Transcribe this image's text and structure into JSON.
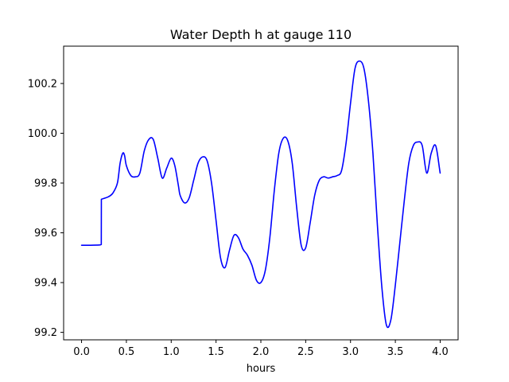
{
  "chart_data": {
    "type": "line",
    "title": "Water Depth h at gauge 110",
    "xlabel": "hours",
    "ylabel": "",
    "xlim": [
      -0.2,
      4.2
    ],
    "ylim": [
      99.17,
      100.35
    ],
    "x_ticks": [
      0.0,
      0.5,
      1.0,
      1.5,
      2.0,
      2.5,
      3.0,
      3.5,
      4.0
    ],
    "x_tick_labels": [
      "0.0",
      "0.5",
      "1.0",
      "1.5",
      "2.0",
      "2.5",
      "3.0",
      "3.5",
      "4.0"
    ],
    "y_ticks": [
      99.2,
      99.4,
      99.6,
      99.8,
      100.0,
      100.2
    ],
    "y_tick_labels": [
      "99.2",
      "99.4",
      "99.6",
      "99.8",
      "100.0",
      "100.2"
    ],
    "grid": false,
    "series": [
      {
        "color": "#0000ff",
        "x": [
          0.0,
          0.1,
          0.2,
          0.22,
          0.221,
          0.3,
          0.35,
          0.4,
          0.43,
          0.46,
          0.48,
          0.5,
          0.55,
          0.6,
          0.65,
          0.7,
          0.75,
          0.8,
          0.85,
          0.9,
          0.95,
          1.0,
          1.04,
          1.08,
          1.1,
          1.15,
          1.2,
          1.25,
          1.3,
          1.35,
          1.4,
          1.45,
          1.5,
          1.55,
          1.6,
          1.65,
          1.7,
          1.75,
          1.8,
          1.85,
          1.9,
          1.95,
          2.0,
          2.05,
          2.1,
          2.15,
          2.2,
          2.25,
          2.3,
          2.35,
          2.4,
          2.45,
          2.5,
          2.55,
          2.6,
          2.65,
          2.7,
          2.75,
          2.8,
          2.85,
          2.9,
          2.95,
          3.0,
          3.05,
          3.1,
          3.15,
          3.2,
          3.25,
          3.3,
          3.35,
          3.4,
          3.45,
          3.5,
          3.55,
          3.6,
          3.65,
          3.7,
          3.75,
          3.8,
          3.85,
          3.9,
          3.95,
          4.0
        ],
        "y": [
          99.55,
          99.55,
          99.551,
          99.553,
          99.735,
          99.745,
          99.76,
          99.8,
          99.88,
          99.92,
          99.91,
          99.87,
          99.83,
          99.825,
          99.84,
          99.93,
          99.975,
          99.975,
          99.9,
          99.82,
          99.86,
          99.9,
          99.87,
          99.79,
          99.75,
          99.72,
          99.74,
          99.81,
          99.88,
          99.905,
          99.89,
          99.8,
          99.65,
          99.5,
          99.46,
          99.53,
          99.59,
          99.58,
          99.535,
          99.51,
          99.47,
          99.41,
          99.4,
          99.45,
          99.58,
          99.77,
          99.92,
          99.98,
          99.97,
          99.88,
          99.7,
          99.55,
          99.54,
          99.64,
          99.75,
          99.81,
          99.825,
          99.82,
          99.825,
          99.83,
          99.85,
          99.96,
          100.12,
          100.26,
          100.29,
          100.26,
          100.13,
          99.92,
          99.63,
          99.38,
          99.23,
          99.25,
          99.39,
          99.56,
          99.73,
          99.88,
          99.95,
          99.965,
          99.95,
          99.84,
          99.92,
          99.95,
          99.84
        ]
      }
    ]
  }
}
